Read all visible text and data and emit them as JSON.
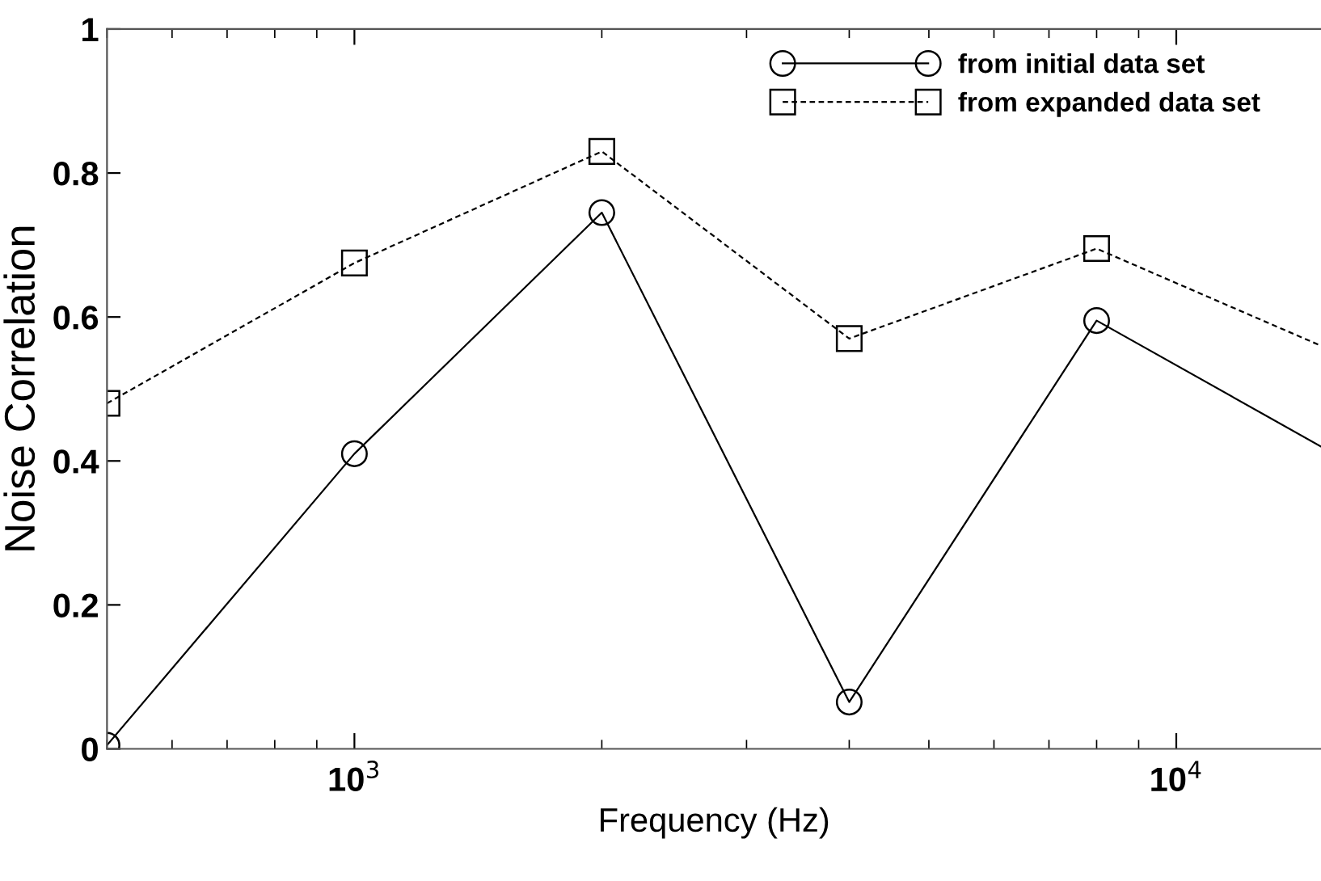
{
  "chart_data": {
    "type": "line",
    "xlabel": "Frequency (Hz)",
    "ylabel": "Noise Correlation",
    "log": "x",
    "xlim": [
      500,
      15000
    ],
    "xticks": [
      {
        "value": 1000,
        "label": "10$^{3}$"
      },
      {
        "value": 10000,
        "label": "10$^{4}$"
      }
    ],
    "ylim": [
      0,
      1
    ],
    "yticks": [
      0,
      {
        "value": 0.2,
        "label": "0.2"
      },
      {
        "value": 0.4,
        "label": "0.4"
      },
      {
        "value": 0.6,
        "label": "0.6"
      },
      {
        "value": 0.8,
        "label": "0.8"
      },
      1
    ],
    "grid": false,
    "legend": "top right",
    "series": [
      {
        "name": "from initial data set",
        "color": "#000000",
        "marker": "circle",
        "line_style": "solid",
        "x": [
          500,
          1000,
          2000,
          4000,
          8000,
          15000
        ],
        "values": [
          0.005,
          0.41,
          0.745,
          0.065,
          0.595,
          0.42
        ]
      },
      {
        "name": "from expanded data set",
        "color": "#000000",
        "marker": "square",
        "line_style": "dotted",
        "x": [
          500,
          1000,
          2000,
          4000,
          8000,
          15000
        ],
        "values": [
          0.48,
          0.675,
          0.83,
          0.57,
          0.695,
          0.56
        ]
      }
    ]
  }
}
